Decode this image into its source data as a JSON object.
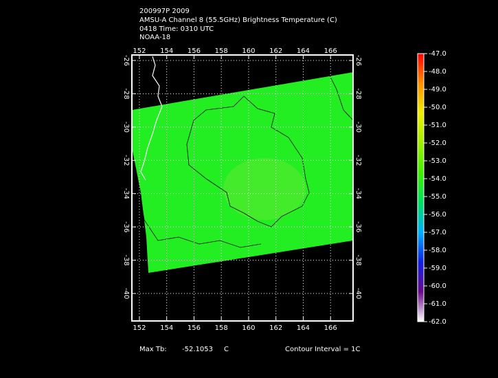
{
  "chart_data": {
    "type": "map",
    "title_lines": [
      "200997P 2009",
      "AMSU-A Channel 8 (55.5GHz) Brightness Temperature (C)",
      "0418 Time: 0310 UTC",
      "NOAA-18"
    ],
    "xlim": [
      151.45,
      167.65
    ],
    "ylim": [
      -41.65,
      -25.67
    ],
    "xticks": [
      152,
      154,
      156,
      158,
      160,
      162,
      164,
      166
    ],
    "yticks": [
      -26,
      -28,
      -30,
      -32,
      -34,
      -36,
      -38,
      -40
    ],
    "grid": true,
    "colorbar": {
      "clim": [
        -62,
        -47
      ],
      "colors": [
        "#ffffff",
        "#6a0a8a",
        "#1020e0",
        "#00b0ff",
        "#00e060",
        "#40f000",
        "#a0f000",
        "#f0f000",
        "#ff9000",
        "#ff0000"
      ],
      "ticks": [
        {
          "value": -47,
          "label": "-47.0"
        },
        {
          "value": -48,
          "label": "-48.0"
        },
        {
          "value": -49,
          "label": "-49.0"
        },
        {
          "value": -50,
          "label": "-50.0"
        },
        {
          "value": -51,
          "label": "-51.0"
        },
        {
          "value": -52,
          "label": "-52.0"
        },
        {
          "value": -53,
          "label": "-53.0"
        },
        {
          "value": -54,
          "label": "-54.0"
        },
        {
          "value": -55,
          "label": "-55.0"
        },
        {
          "value": -56,
          "label": "-56.0"
        },
        {
          "value": -57,
          "label": "-57.0"
        },
        {
          "value": -58,
          "label": "-58.0"
        },
        {
          "value": -59,
          "label": "-59.0"
        },
        {
          "value": -60,
          "label": "-60.0"
        },
        {
          "value": -61,
          "label": "-61.0"
        },
        {
          "value": -62,
          "label": "-62.0"
        }
      ]
    },
    "max_tb_label": "Max Tb:",
    "max_tb": -52.1053,
    "max_tb_unit": "C",
    "contour_note": "Contour Interval = 1C"
  }
}
